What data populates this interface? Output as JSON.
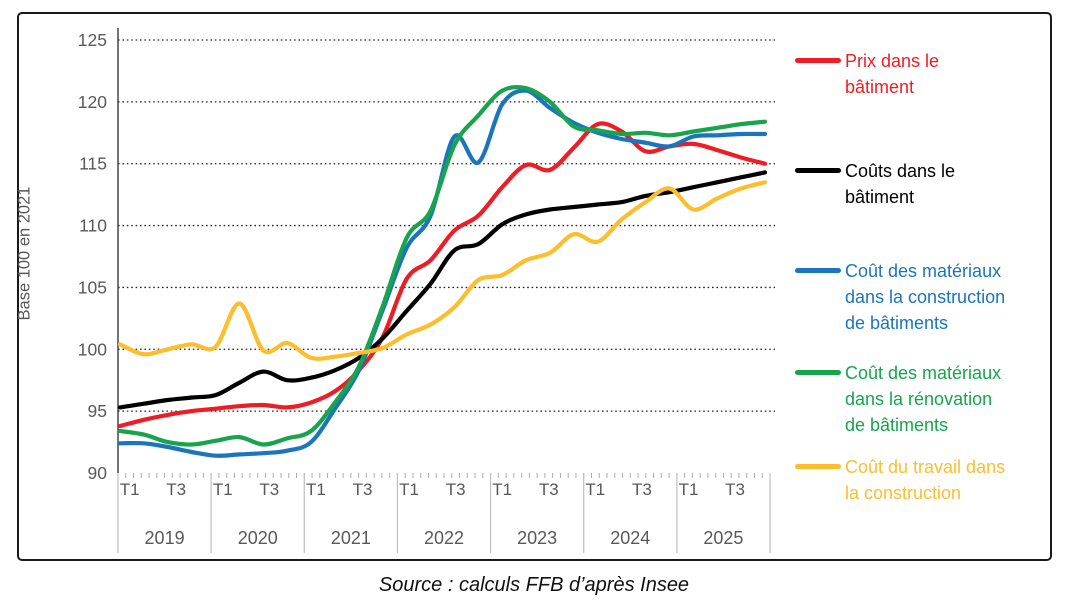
{
  "chart": {
    "y_axis_title": "Base 100 en 2021",
    "source": "Source : calculs FFB d’après Insee"
  },
  "chart_data": {
    "type": "line",
    "title": "",
    "ylabel": "Base 100 en 2021",
    "ylim": [
      90,
      125
    ],
    "y_ticks": [
      90,
      95,
      100,
      105,
      110,
      115,
      120,
      125
    ],
    "grid": "horizontal dotted",
    "legend_position": "right",
    "line_style": "smooth spline, thick",
    "x_axis": {
      "years": [
        "2019",
        "2020",
        "2021",
        "2022",
        "2023",
        "2024",
        "2025"
      ],
      "quarter_tick_labels": [
        "T1",
        "T3"
      ],
      "quarters_per_year": 4
    },
    "x": [
      "2019-T1",
      "2019-T2",
      "2019-T3",
      "2019-T4",
      "2020-T1",
      "2020-T2",
      "2020-T3",
      "2020-T4",
      "2021-T1",
      "2021-T2",
      "2021-T3",
      "2021-T4",
      "2022-T1",
      "2022-T2",
      "2022-T3",
      "2022-T4",
      "2023-T1",
      "2023-T2",
      "2023-T3",
      "2023-T4",
      "2024-T1",
      "2024-T2",
      "2024-T3",
      "2024-T4",
      "2025-T1",
      "2025-T2",
      "2025-T3",
      "2025-T4"
    ],
    "series": [
      {
        "name": "Prix dans le bâtiment",
        "legend_lines": [
          "Prix dans le",
          "bâtiment"
        ],
        "color": "#EE1C25",
        "values": [
          93.8,
          94.3,
          94.7,
          95.0,
          95.2,
          95.4,
          95.5,
          95.3,
          95.7,
          96.6,
          98.3,
          101.0,
          105.7,
          107.2,
          109.6,
          110.8,
          113.1,
          114.9,
          114.5,
          116.3,
          118.2,
          117.6,
          116.0,
          116.4,
          116.6,
          116.1,
          115.5,
          115.0
        ]
      },
      {
        "name": "Coûts dans le bâtiment",
        "legend_lines": [
          "Coûts dans le",
          "bâtiment"
        ],
        "color": "#000000",
        "values": [
          95.3,
          95.6,
          95.9,
          96.1,
          96.3,
          97.3,
          98.2,
          97.5,
          97.7,
          98.3,
          99.3,
          100.9,
          103.1,
          105.3,
          108.0,
          108.5,
          110.1,
          110.9,
          111.3,
          111.5,
          111.7,
          111.9,
          112.4,
          112.7,
          113.1,
          113.5,
          113.9,
          114.3
        ]
      },
      {
        "name": "Coût des matériaux dans la construction de bâtiments",
        "legend_lines": [
          "Coût des matériaux",
          "dans la construction",
          "de bâtiments"
        ],
        "color": "#1B75BC",
        "values": [
          92.4,
          92.4,
          92.1,
          91.7,
          91.4,
          91.5,
          91.6,
          91.8,
          92.5,
          95.2,
          98.3,
          103.2,
          108.2,
          110.8,
          117.2,
          115.1,
          119.8,
          120.9,
          119.5,
          118.3,
          117.5,
          117.0,
          116.7,
          116.4,
          117.2,
          117.3,
          117.4,
          117.4
        ]
      },
      {
        "name": "Coût des matériaux dans la rénovation de bâtiments",
        "legend_lines": [
          "Coût des matériaux",
          "dans la rénovation",
          "de bâtiments"
        ],
        "color": "#18A44D",
        "values": [
          93.4,
          93.1,
          92.5,
          92.3,
          92.6,
          92.9,
          92.3,
          92.8,
          93.4,
          95.7,
          98.6,
          103.5,
          109.0,
          111.2,
          116.5,
          118.9,
          120.9,
          121.1,
          120.0,
          118.0,
          117.7,
          117.4,
          117.5,
          117.3,
          117.6,
          117.9,
          118.2,
          118.4
        ]
      },
      {
        "name": "Coût du travail dans la construction",
        "legend_lines": [
          "Coût du travail dans",
          "la construction"
        ],
        "color": "#FCBE2D",
        "values": [
          100.4,
          99.6,
          100.0,
          100.4,
          100.2,
          103.7,
          99.9,
          100.5,
          99.3,
          99.4,
          99.7,
          100.1,
          101.2,
          102.0,
          103.4,
          105.6,
          106.0,
          107.2,
          107.8,
          109.3,
          108.7,
          110.5,
          111.9,
          113.0,
          111.3,
          112.2,
          113.0,
          113.5
        ]
      }
    ],
    "source": "Source : calculs FFB d’après Insee"
  }
}
